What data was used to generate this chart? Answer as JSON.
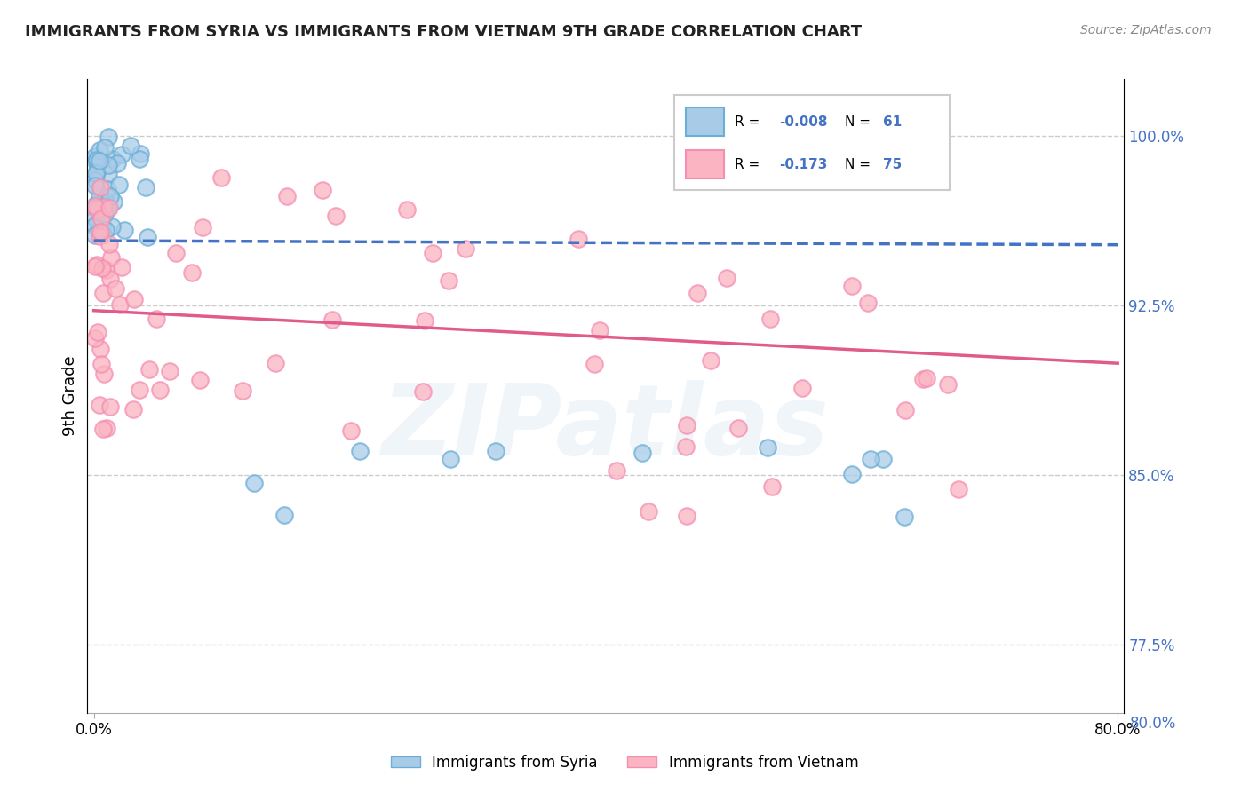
{
  "title": "IMMIGRANTS FROM SYRIA VS IMMIGRANTS FROM VIETNAM 9TH GRADE CORRELATION CHART",
  "source": "Source: ZipAtlas.com",
  "ylabel": "9th Grade",
  "color_syria_face": "#a8cce8",
  "color_syria_edge": "#6baed6",
  "color_vietnam_face": "#fbb4c2",
  "color_vietnam_edge": "#f48fb1",
  "color_line_syria": "#4472c4",
  "color_line_vietnam": "#e05a8a",
  "xlim": [
    0.0,
    0.8
  ],
  "ylim": [
    0.745,
    1.025
  ],
  "yticks": [
    1.0,
    0.925,
    0.85,
    0.775
  ],
  "ytick_labels": [
    "100.0%",
    "92.5%",
    "85.0%",
    "77.5%"
  ],
  "xtick_left": "0.0%",
  "xtick_right": "80.0%",
  "right_bottom_label": "80.0%",
  "legend_r1": "-0.008",
  "legend_n1": "61",
  "legend_r2": "-0.173",
  "legend_n2": "75",
  "legend_label1": "Immigrants from Syria",
  "legend_label2": "Immigrants from Vietnam",
  "watermark": "ZIPatlas"
}
